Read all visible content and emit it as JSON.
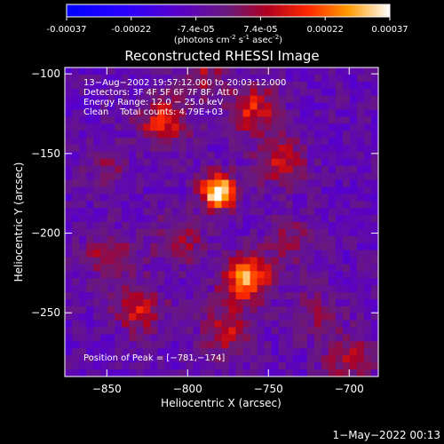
{
  "colorbar": {
    "ticks": [
      "-0.00037",
      "-0.00022",
      "-7.4e-05",
      "7.4e-05",
      "0.00022",
      "0.00037"
    ],
    "unit_main": "(photons cm",
    "unit_sup1": "-2",
    "unit_mid": " s",
    "unit_sup2": "-1",
    "unit_end": " asec",
    "unit_sup3": "-2",
    "unit_close": ")",
    "range": [
      -0.00037,
      0.00037
    ],
    "colormap": "RHESSI blue-purple-red-yellow-white"
  },
  "chart_data": {
    "type": "heatmap",
    "title": "Reconstructed RHESSI Image",
    "xlabel": "Heliocentric X (arcsec)",
    "ylabel": "Heliocentric Y (arcsec)",
    "xlim": [
      -876,
      -682
    ],
    "ylim": [
      -290,
      -96
    ],
    "xticks": [
      -850,
      -800,
      -750,
      -700
    ],
    "xtick_labels": [
      "−850",
      "−800",
      "−750",
      "−700"
    ],
    "yticks": [
      -100,
      -150,
      -200,
      -250
    ],
    "ytick_labels": [
      "−100",
      "−150",
      "−200",
      "−250"
    ],
    "annotations": [
      "13−Aug−2002 19:57:12.000 to 20:03:12.000",
      "Detectors: 3F 4F 5F 6F 7F 8F, Att 0",
      "Energy Range: 12.0 − 25.0 keV",
      "Clean    Total counts: 4.79E+03"
    ],
    "peak_label": "Position of Peak = [−781,−174]",
    "peak": [
      -781,
      -174
    ],
    "sources": [
      {
        "x": -781,
        "y": -174,
        "amp": 1.0
      },
      {
        "x": -764,
        "y": -228,
        "amp": 0.75
      },
      {
        "x": -815,
        "y": -130,
        "amp": 0.5
      },
      {
        "x": -760,
        "y": -122,
        "amp": 0.48
      },
      {
        "x": -742,
        "y": -155,
        "amp": 0.4
      },
      {
        "x": -830,
        "y": -248,
        "amp": 0.42
      },
      {
        "x": -805,
        "y": -205,
        "amp": 0.32
      },
      {
        "x": -775,
        "y": -262,
        "amp": 0.4
      },
      {
        "x": -848,
        "y": -215,
        "amp": 0.35
      },
      {
        "x": -850,
        "y": -160,
        "amp": 0.22
      },
      {
        "x": -735,
        "y": -205,
        "amp": 0.28
      },
      {
        "x": -700,
        "y": -278,
        "amp": 0.35
      },
      {
        "x": -722,
        "y": -250,
        "amp": 0.22
      },
      {
        "x": -790,
        "y": -100,
        "amp": 0.3
      }
    ]
  },
  "footer": {
    "timestamp": "1−May−2022 00:13"
  }
}
